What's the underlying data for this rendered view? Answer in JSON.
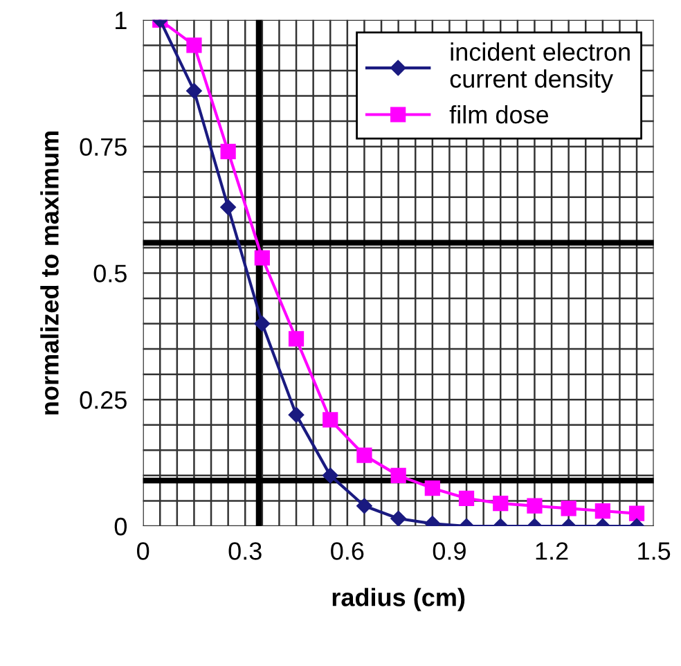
{
  "chart_data": {
    "type": "line",
    "xlabel": "radius (cm)",
    "ylabel": "normalized to maximum",
    "x": [
      0.05,
      0.15,
      0.25,
      0.35,
      0.45,
      0.55,
      0.65,
      0.75,
      0.85,
      0.95,
      1.05,
      1.15,
      1.25,
      1.35,
      1.45
    ],
    "series": [
      {
        "name": "incident electron\ncurrent density",
        "color": "#1a1a80",
        "marker": "diamond",
        "values": [
          1.0,
          0.86,
          0.63,
          0.4,
          0.22,
          0.1,
          0.04,
          0.015,
          0.005,
          0.0,
          0.0,
          0.0,
          0.0,
          0.0,
          0.0
        ]
      },
      {
        "name": "film dose",
        "color": "#ff00ff",
        "marker": "square",
        "values": [
          1.0,
          0.95,
          0.74,
          0.53,
          0.37,
          0.21,
          0.14,
          0.1,
          0.075,
          0.055,
          0.045,
          0.04,
          0.035,
          0.03,
          0.025
        ]
      }
    ],
    "xlim": [
      0,
      1.5
    ],
    "ylim": [
      0,
      1
    ],
    "xticks": [
      0,
      {
        "value": 0.05,
        "label": null
      },
      {
        "value": 0.1,
        "label": null
      },
      {
        "value": 0.15,
        "label": null
      },
      {
        "value": 0.2,
        "label": null
      },
      {
        "value": 0.25,
        "label": null
      },
      0.3,
      {
        "value": 0.35,
        "label": null
      },
      {
        "value": 0.4,
        "label": null
      },
      {
        "value": 0.45,
        "label": null
      },
      {
        "value": 0.5,
        "label": null
      },
      {
        "value": 0.55,
        "label": null
      },
      0.6,
      {
        "value": 0.65,
        "label": null
      },
      {
        "value": 0.7,
        "label": null
      },
      {
        "value": 0.75,
        "label": null
      },
      {
        "value": 0.8,
        "label": null
      },
      {
        "value": 0.85,
        "label": null
      },
      0.9,
      {
        "value": 0.95,
        "label": null
      },
      {
        "value": 1.0,
        "label": null
      },
      {
        "value": 1.05,
        "label": null
      },
      {
        "value": 1.1,
        "label": null
      },
      {
        "value": 1.15,
        "label": null
      },
      1.2,
      {
        "value": 1.25,
        "label": null
      },
      {
        "value": 1.3,
        "label": null
      },
      {
        "value": 1.35,
        "label": null
      },
      {
        "value": 1.4,
        "label": null
      },
      {
        "value": 1.45,
        "label": null
      },
      1.5
    ],
    "yticks": [
      0,
      {
        "value": 0.05,
        "label": null
      },
      {
        "value": 0.1,
        "label": null
      },
      {
        "value": 0.15,
        "label": null
      },
      {
        "value": 0.2,
        "label": null
      },
      0.25,
      {
        "value": 0.3,
        "label": null
      },
      {
        "value": 0.35,
        "label": null
      },
      {
        "value": 0.4,
        "label": null
      },
      {
        "value": 0.45,
        "label": null
      },
      0.5,
      {
        "value": 0.55,
        "label": null
      },
      {
        "value": 0.6,
        "label": null
      },
      {
        "value": 0.65,
        "label": null
      },
      {
        "value": 0.7,
        "label": null
      },
      0.75,
      {
        "value": 0.8,
        "label": null
      },
      {
        "value": 0.85,
        "label": null
      },
      {
        "value": 0.9,
        "label": null
      },
      {
        "value": 0.95,
        "label": null
      },
      1
    ],
    "grid": true,
    "legend": "top right",
    "line_style": "solid",
    "ref_lines": [
      {
        "axis": "x",
        "value": 0.34,
        "color": "#000000"
      },
      {
        "axis": "y",
        "value": 0.56,
        "color": "#000000"
      },
      {
        "axis": "y",
        "value": 0.09,
        "color": "#000000"
      }
    ]
  }
}
